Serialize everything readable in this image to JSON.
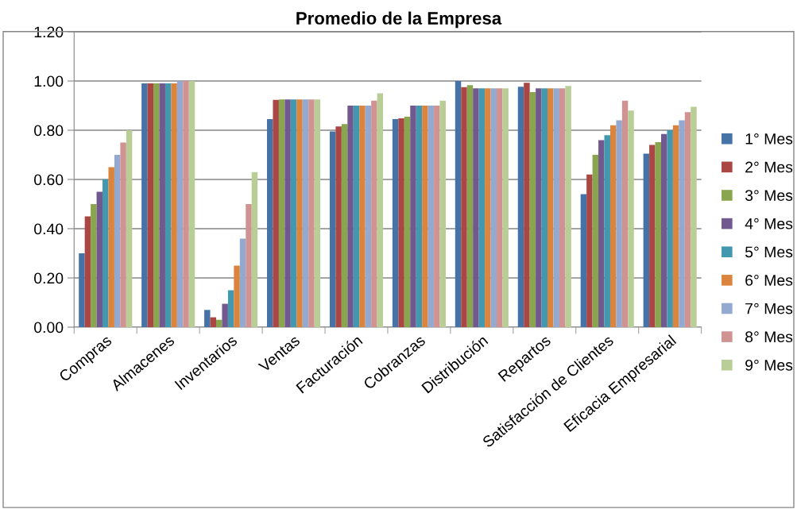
{
  "chart_data": {
    "type": "bar",
    "title": "Promedio de la Empresa",
    "categories": [
      "Compras",
      "Almacenes",
      "Inventarios",
      "Ventas",
      "Facturación",
      "Cobranzas",
      "Distribución",
      "Repartos",
      "Satisfacción de Clientes",
      "Eficacia Empresarial"
    ],
    "series": [
      {
        "name": "1° Mes",
        "color": "#4572a7",
        "values": [
          0.3,
          0.99,
          0.07,
          0.845,
          0.795,
          0.845,
          1.0,
          0.977,
          0.54,
          0.705
        ]
      },
      {
        "name": "2° Mes",
        "color": "#aa4643",
        "values": [
          0.45,
          0.99,
          0.04,
          0.923,
          0.815,
          0.848,
          0.975,
          0.993,
          0.62,
          0.74
        ]
      },
      {
        "name": "3° Mes",
        "color": "#89a54e",
        "values": [
          0.5,
          0.99,
          0.03,
          0.925,
          0.825,
          0.855,
          0.983,
          0.955,
          0.7,
          0.752
        ]
      },
      {
        "name": "4° Mes",
        "color": "#71588f",
        "values": [
          0.55,
          0.99,
          0.095,
          0.925,
          0.9,
          0.9,
          0.97,
          0.97,
          0.76,
          0.785
        ]
      },
      {
        "name": "5° Mes",
        "color": "#4198af",
        "values": [
          0.6,
          0.99,
          0.15,
          0.925,
          0.9,
          0.9,
          0.97,
          0.97,
          0.78,
          0.8
        ]
      },
      {
        "name": "6° Mes",
        "color": "#db843d",
        "values": [
          0.65,
          0.99,
          0.25,
          0.925,
          0.9,
          0.9,
          0.97,
          0.97,
          0.82,
          0.82
        ]
      },
      {
        "name": "7° Mes",
        "color": "#93a9cf",
        "values": [
          0.7,
          1.0,
          0.36,
          0.925,
          0.9,
          0.9,
          0.97,
          0.97,
          0.84,
          0.84
        ]
      },
      {
        "name": "8° Mes",
        "color": "#d19392",
        "values": [
          0.75,
          1.0,
          0.5,
          0.925,
          0.92,
          0.9,
          0.97,
          0.97,
          0.92,
          0.873
        ]
      },
      {
        "name": "9° Mes",
        "color": "#b9cd96",
        "values": [
          0.8,
          1.0,
          0.63,
          0.925,
          0.95,
          0.92,
          0.97,
          0.98,
          0.88,
          0.895
        ]
      }
    ],
    "ylim": [
      0,
      1.2
    ],
    "yticks": [
      {
        "value": 0,
        "label": "0.00"
      },
      {
        "value": 0.2,
        "label": "0.20"
      },
      {
        "value": 0.4,
        "label": "0.40"
      },
      {
        "value": 0.6,
        "label": "0.60"
      },
      {
        "value": 0.8,
        "label": "0.80"
      },
      {
        "value": 1.0,
        "label": "1.00"
      },
      {
        "value": 1.2,
        "label": "1.20"
      }
    ],
    "grid": "y",
    "legend": "right"
  }
}
